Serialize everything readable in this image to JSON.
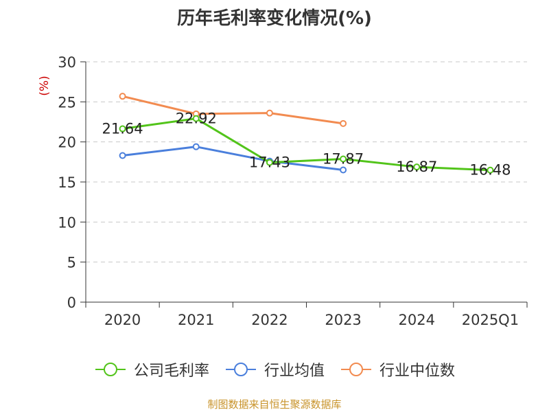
{
  "chart_data": {
    "type": "line",
    "title": "历年毛利率变化情况(%)",
    "ylabel": "(%)",
    "xlabel": "",
    "categories": [
      "2020",
      "2021",
      "2022",
      "2023",
      "2024",
      "2025Q1"
    ],
    "ylim": [
      0,
      30
    ],
    "yticks": [
      0,
      5,
      10,
      15,
      20,
      25,
      30
    ],
    "grid": true,
    "legend_position": "bottom",
    "series": [
      {
        "name": "公司毛利率",
        "color": "#52c41a",
        "values": [
          21.64,
          22.92,
          17.43,
          17.87,
          16.87,
          16.48
        ],
        "labels": [
          "21.64",
          "22.92",
          "17.43",
          "17.87",
          "16.87",
          "16.48"
        ]
      },
      {
        "name": "行业均值",
        "color": "#4a7fdc",
        "values": [
          18.3,
          19.4,
          17.6,
          16.5,
          null,
          null
        ]
      },
      {
        "name": "行业中位数",
        "color": "#f28b50",
        "values": [
          25.7,
          23.5,
          23.6,
          22.3,
          null,
          null
        ]
      }
    ]
  },
  "footer": {
    "source": "制图数据来自恒生聚源数据库"
  }
}
